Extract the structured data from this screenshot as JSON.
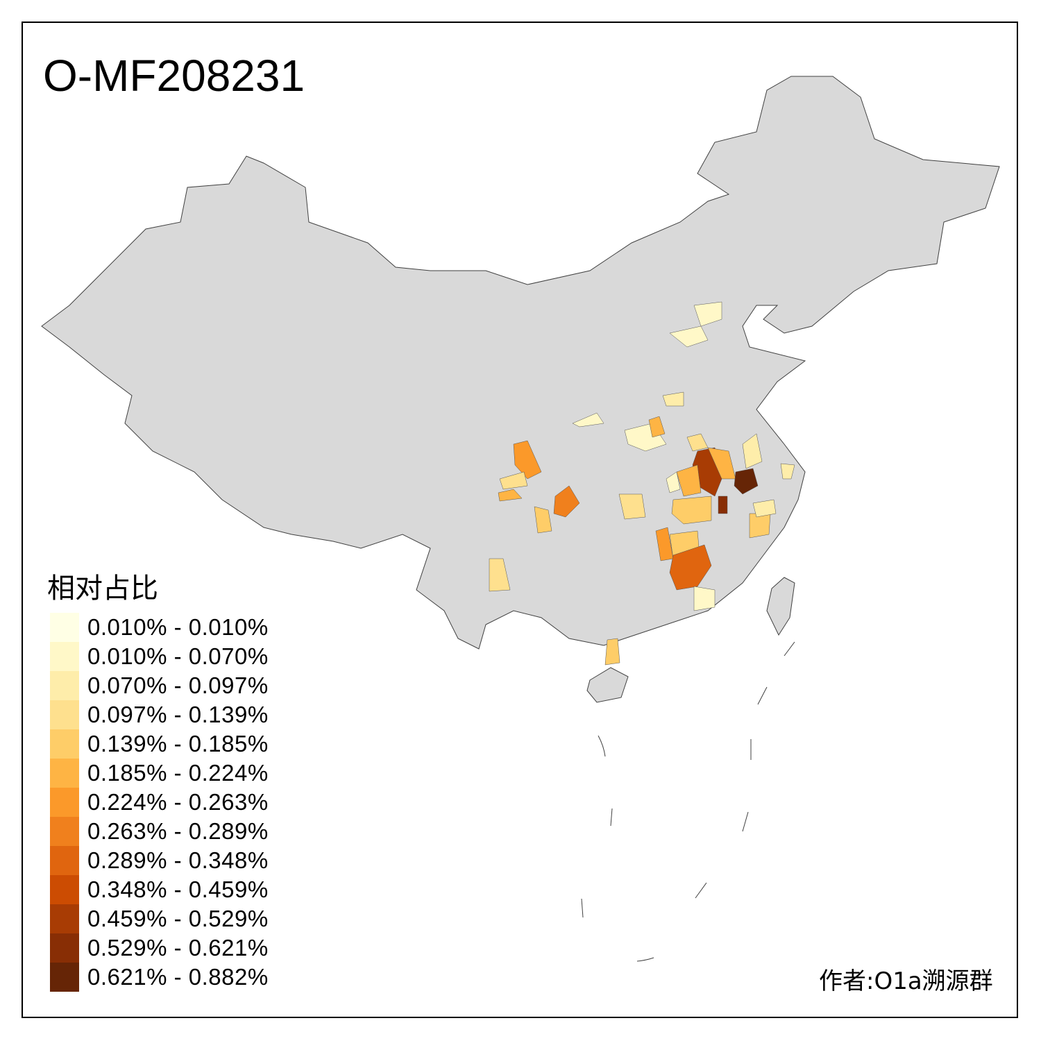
{
  "title": "O-MF208231",
  "legend": {
    "title": "相对占比",
    "items": [
      {
        "label": "0.010% - 0.010%",
        "color": "#FFFFE5"
      },
      {
        "label": "0.010% - 0.070%",
        "color": "#FFF8C8"
      },
      {
        "label": "0.070% - 0.097%",
        "color": "#FEEDAA"
      },
      {
        "label": "0.097% - 0.139%",
        "color": "#FEE08E"
      },
      {
        "label": "0.139% - 0.185%",
        "color": "#FECD68"
      },
      {
        "label": "0.185% - 0.224%",
        "color": "#FEB444"
      },
      {
        "label": "0.224% - 0.263%",
        "color": "#FB992A"
      },
      {
        "label": "0.263% - 0.289%",
        "color": "#F0801D"
      },
      {
        "label": "0.289% - 0.348%",
        "color": "#E0650F"
      },
      {
        "label": "0.348% - 0.459%",
        "color": "#CC4C02"
      },
      {
        "label": "0.459% - 0.529%",
        "color": "#A83C04"
      },
      {
        "label": "0.529% - 0.621%",
        "color": "#882E05"
      },
      {
        "label": "0.621% - 0.882%",
        "color": "#662506"
      }
    ]
  },
  "map": {
    "base_color": "#D9D9D9",
    "border_color": "#404040"
  },
  "credit": "作者:O1a溯源群"
}
